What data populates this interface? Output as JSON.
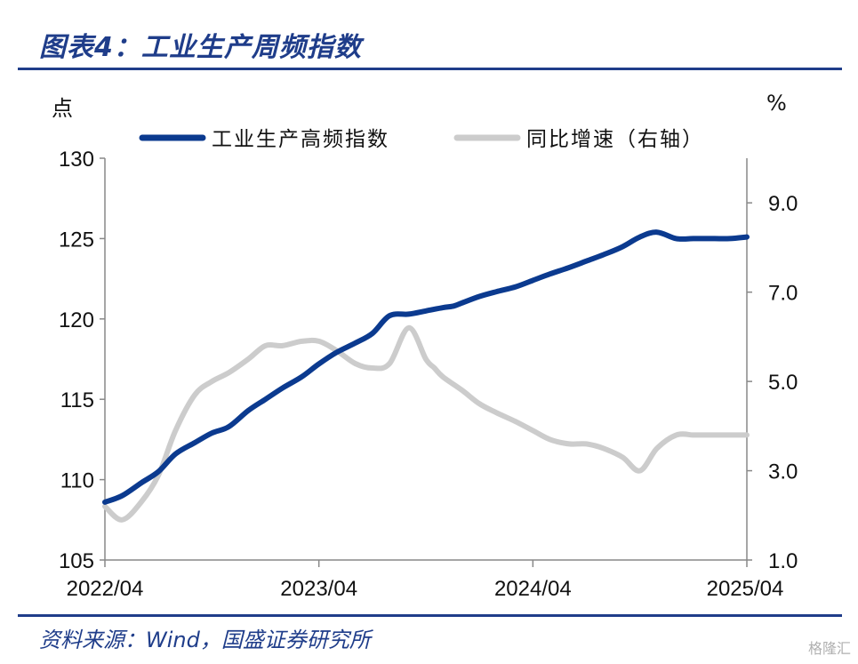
{
  "header": {
    "title": "图表4：工业生产周频指数"
  },
  "footer": {
    "source": "资料来源：Wind，国盛证券研究所",
    "watermark": "格隆汇"
  },
  "colors": {
    "brand": "#1f3d8a",
    "index_line": "#0b3a8f",
    "yoy_line": "#cccccc"
  },
  "chart_data": {
    "type": "line",
    "title": "",
    "left_axis": {
      "unit": "点",
      "min": 105,
      "max": 130,
      "ticks": [
        105,
        110,
        115,
        120,
        125,
        130
      ]
    },
    "right_axis": {
      "unit": "%",
      "min": 1.0,
      "max": 10.0,
      "ticks": [
        1.0,
        3.0,
        5.0,
        7.0,
        9.0
      ]
    },
    "x_axis": {
      "ticks": [
        "2022/04",
        "2023/04",
        "2024/04",
        "2025/04"
      ]
    },
    "legend": {
      "position": "top",
      "entries": [
        "工业生产高频指数",
        "同比增速（右轴）"
      ]
    },
    "series": [
      {
        "name": "工业生产高频指数",
        "axis": "left",
        "x": [
          2022.25,
          2022.33,
          2022.42,
          2022.5,
          2022.58,
          2022.67,
          2022.75,
          2022.83,
          2022.92,
          2023.0,
          2023.08,
          2023.17,
          2023.25,
          2023.33,
          2023.42,
          2023.5,
          2023.58,
          2023.67,
          2023.75,
          2023.83,
          2023.88,
          2023.92,
          2024.0,
          2024.08,
          2024.17,
          2024.25,
          2024.33,
          2024.42,
          2024.5,
          2024.58,
          2024.67,
          2024.75,
          2024.83,
          2024.92,
          2025.0,
          2025.04,
          2025.1,
          2025.17,
          2025.25
        ],
        "values": [
          108.6,
          109.0,
          109.8,
          110.5,
          111.6,
          112.3,
          112.9,
          113.3,
          114.3,
          115.0,
          115.7,
          116.4,
          117.2,
          117.9,
          118.5,
          119.1,
          120.2,
          120.3,
          120.5,
          120.7,
          120.8,
          121.0,
          121.4,
          121.7,
          122.0,
          122.4,
          122.8,
          123.2,
          123.6,
          124.0,
          124.5,
          125.1,
          125.4,
          125.0,
          125.0,
          125.0,
          125.0,
          125.0,
          125.1
        ]
      },
      {
        "name": "同比增速（右轴）",
        "axis": "right",
        "x": [
          2022.25,
          2022.33,
          2022.42,
          2022.5,
          2022.58,
          2022.67,
          2022.75,
          2022.83,
          2022.92,
          2023.0,
          2023.08,
          2023.17,
          2023.25,
          2023.33,
          2023.42,
          2023.5,
          2023.58,
          2023.67,
          2023.75,
          2023.79,
          2023.83,
          2023.92,
          2024.0,
          2024.08,
          2024.17,
          2024.25,
          2024.33,
          2024.42,
          2024.5,
          2024.58,
          2024.67,
          2024.75,
          2024.83,
          2024.92,
          2025.0,
          2025.04,
          2025.1,
          2025.17,
          2025.25
        ],
        "values": [
          2.2,
          1.9,
          2.3,
          2.9,
          3.9,
          4.7,
          5.0,
          5.2,
          5.5,
          5.8,
          5.8,
          5.9,
          5.9,
          5.7,
          5.4,
          5.3,
          5.4,
          6.2,
          5.5,
          5.3,
          5.1,
          4.8,
          4.5,
          4.3,
          4.1,
          3.9,
          3.7,
          3.6,
          3.6,
          3.5,
          3.3,
          3.0,
          3.5,
          3.8,
          3.8,
          3.8,
          3.8,
          3.8,
          3.8
        ]
      }
    ],
    "grid": false
  }
}
